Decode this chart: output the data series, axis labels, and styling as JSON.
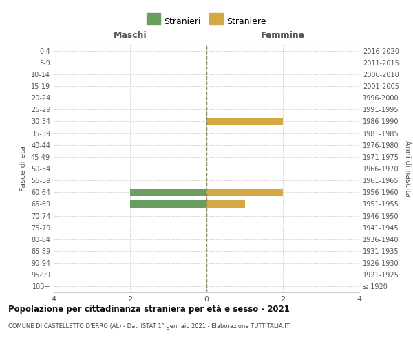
{
  "age_groups": [
    "100+",
    "95-99",
    "90-94",
    "85-89",
    "80-84",
    "75-79",
    "70-74",
    "65-69",
    "60-64",
    "55-59",
    "50-54",
    "45-49",
    "40-44",
    "35-39",
    "30-34",
    "25-29",
    "20-24",
    "15-19",
    "10-14",
    "5-9",
    "0-4"
  ],
  "birth_years": [
    "≤ 1920",
    "1921-1925",
    "1926-1930",
    "1931-1935",
    "1936-1940",
    "1941-1945",
    "1946-1950",
    "1951-1955",
    "1956-1960",
    "1961-1965",
    "1966-1970",
    "1971-1975",
    "1976-1980",
    "1981-1985",
    "1986-1990",
    "1991-1995",
    "1996-2000",
    "2001-2005",
    "2006-2010",
    "2011-2015",
    "2016-2020"
  ],
  "males": [
    0,
    0,
    0,
    0,
    0,
    0,
    0,
    2,
    2,
    0,
    0,
    0,
    0,
    0,
    0,
    0,
    0,
    0,
    0,
    0,
    0
  ],
  "females": [
    0,
    0,
    0,
    0,
    0,
    0,
    0,
    1,
    2,
    0,
    0,
    0,
    0,
    0,
    2,
    0,
    0,
    0,
    0,
    0,
    0
  ],
  "male_color": "#6a9e5e",
  "female_color": "#d4a843",
  "xlim": 4,
  "title": "Popolazione per cittadinanza straniera per età e sesso - 2021",
  "subtitle": "COMUNE DI CASTELLETTO D'ERRO (AL) - Dati ISTAT 1° gennaio 2021 - Elaborazione TUTTITALIA.IT",
  "left_label": "Maschi",
  "right_label": "Femmine",
  "ylabel_left": "Fasce di età",
  "ylabel_right": "Anni di nascita",
  "legend_male": "Stranieri",
  "legend_female": "Straniere",
  "background_color": "#ffffff",
  "grid_color": "#cccccc",
  "dashed_line_color": "#8a8a5a"
}
